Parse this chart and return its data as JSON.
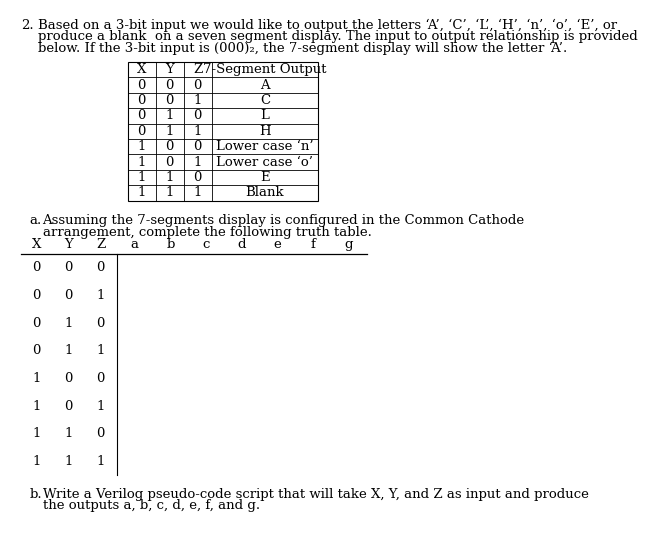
{
  "bg_color": "#ffffff",
  "text_color": "#000000",
  "intro_line1": "Based on a 3-bit input we would like to output the letters ‘A’, ‘C’, ‘L’, ‘H’, ‘n’, ‘o’, ‘E’, or",
  "intro_line2": "produce a blank  on a seven segment display. The input to output relationship is provided",
  "intro_line3": "below. If the 3-bit input is (000)₂, the 7-segment display will show the letter ‘A’.",
  "table1_headers": [
    "X",
    "Y",
    "Z",
    "7-Segment Output"
  ],
  "table1_rows": [
    [
      "0",
      "0",
      "0",
      "A"
    ],
    [
      "0",
      "0",
      "1",
      "C"
    ],
    [
      "0",
      "1",
      "0",
      "L"
    ],
    [
      "0",
      "1",
      "1",
      "H"
    ],
    [
      "1",
      "0",
      "0",
      "Lower case ‘n’"
    ],
    [
      "1",
      "0",
      "1",
      "Lower case ‘o’"
    ],
    [
      "1",
      "1",
      "0",
      "E"
    ],
    [
      "1",
      "1",
      "1",
      "Blank"
    ]
  ],
  "part_a_label": "a.",
  "part_a_line1": "Assuming the 7-segments display is configured in the Common Cathode",
  "part_a_line2": "arrangement, complete the following truth table.",
  "table2_headers": [
    "X",
    "Y",
    "Z",
    "a",
    "b",
    "c",
    "d",
    "e",
    "f",
    "g"
  ],
  "table2_rows": [
    [
      "0",
      "0",
      "0"
    ],
    [
      "0",
      "0",
      "1"
    ],
    [
      "0",
      "1",
      "0"
    ],
    [
      "0",
      "1",
      "1"
    ],
    [
      "1",
      "0",
      "0"
    ],
    [
      "1",
      "0",
      "1"
    ],
    [
      "1",
      "1",
      "0"
    ],
    [
      "1",
      "1",
      "1"
    ]
  ],
  "part_b_label": "b.",
  "part_b_line1": "Write a Verilog pseudo-code script that will take X, Y, and Z as input and produce",
  "part_b_line2": "the outputs a, b, c, d, e, f, and g.",
  "font_size": 9.5
}
